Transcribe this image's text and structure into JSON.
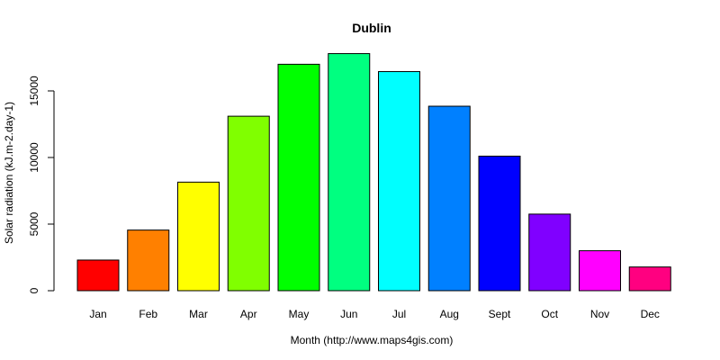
{
  "chart_data": {
    "type": "bar",
    "title": "Dublin",
    "xlabel": "Month (http://www.maps4gis.com)",
    "ylabel": "Solar radiation (kJ.m-2.day-1)",
    "categories": [
      "Jan",
      "Feb",
      "Mar",
      "Apr",
      "May",
      "Jun",
      "Jul",
      "Aug",
      "Sept",
      "Oct",
      "Nov",
      "Dec"
    ],
    "values": [
      2300,
      4550,
      8150,
      13100,
      17000,
      17800,
      16450,
      13850,
      10100,
      5750,
      3000,
      1780
    ],
    "colors": [
      "#ff0000",
      "#ff8000",
      "#ffff00",
      "#80ff00",
      "#00ff00",
      "#00ff80",
      "#00ffff",
      "#0080ff",
      "#0000ff",
      "#8000ff",
      "#ff00ff",
      "#ff0080"
    ],
    "ylim": [
      0,
      18000
    ],
    "yticks": [
      0,
      5000,
      10000,
      15000
    ],
    "ytick_labels": [
      "0",
      "5000",
      "10000",
      "15000"
    ],
    "grid": false,
    "legend": false
  }
}
